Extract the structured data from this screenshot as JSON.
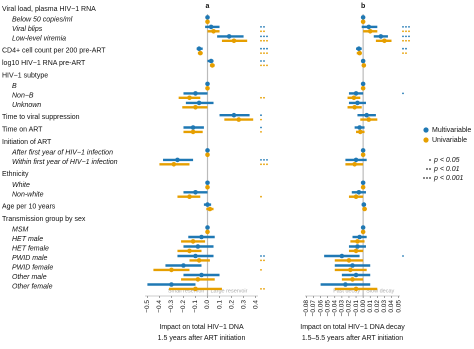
{
  "chart_data": {
    "type": "forest",
    "legend": [
      {
        "name": "Multivariable",
        "color": "#1f78b4"
      },
      {
        "name": "Univariable",
        "color": "#e69f00"
      }
    ],
    "significance": [
      {
        "stars": 1,
        "label": "p < 0.05"
      },
      {
        "stars": 2,
        "label": "p < 0.01"
      },
      {
        "stars": 3,
        "label": "p < 0.001"
      }
    ],
    "rows": [
      {
        "label": "Viral load, plasma HIV−1 RNA",
        "italic": false
      },
      {
        "label": "Below 50 copies/ml",
        "italic": true
      },
      {
        "label": "Viral blips",
        "italic": true
      },
      {
        "label": "Low-level viremia",
        "italic": true
      },
      {
        "label": "CD4+ cell count per 200 pre-ART",
        "italic": false
      },
      {
        "label": "log10 HIV−1 RNA pre-ART",
        "italic": false
      },
      {
        "label": "HIV−1 subtype",
        "italic": false
      },
      {
        "label": "B",
        "italic": true
      },
      {
        "label": "Non−B",
        "italic": true
      },
      {
        "label": "Unknown",
        "italic": true
      },
      {
        "label": "Time to viral suppression",
        "italic": false
      },
      {
        "label": "Time on ART",
        "italic": false
      },
      {
        "label": "Initiation of ART",
        "italic": false
      },
      {
        "label": "After first year of HIV−1 infection",
        "italic": true
      },
      {
        "label": "Within first year of HIV−1 infection",
        "italic": true
      },
      {
        "label": "Ethnicity",
        "italic": false
      },
      {
        "label": "White",
        "italic": true
      },
      {
        "label": "Non-white",
        "italic": true
      },
      {
        "label": "Age per 10 years",
        "italic": false
      },
      {
        "label": "Transmission group by sex",
        "italic": false
      },
      {
        "label": "MSM",
        "italic": true
      },
      {
        "label": "HET male",
        "italic": true
      },
      {
        "label": "HET female",
        "italic": true
      },
      {
        "label": "PWID male",
        "italic": true
      },
      {
        "label": "PWID female",
        "italic": true
      },
      {
        "label": "Other male",
        "italic": true
      },
      {
        "label": "Other female",
        "italic": true
      }
    ],
    "panels": [
      {
        "letter": "a",
        "xlabel": [
          "Impact on total HIV−1 DNA",
          "1.5 years after ART initiation"
        ],
        "note_left": "Small reservoir",
        "note_right": "Large reservoir",
        "xlim": [
          -0.52,
          0.42
        ],
        "xticks": [
          {
            "value": -0.5,
            "label": "−0.5"
          },
          {
            "value": -0.4,
            "label": "−0.4"
          },
          {
            "value": -0.3,
            "label": "−0.3"
          },
          {
            "value": -0.2,
            "label": "−0.2"
          },
          {
            "value": -0.1,
            "label": "−0.1"
          },
          {
            "value": 0,
            "label": "0.0"
          },
          0.1,
          0.2,
          0.3,
          0.4
        ],
        "series": [
          {
            "est": [
              null,
              0,
              0.03,
              0.18,
              -0.07,
              0.03,
              null,
              0,
              -0.1,
              -0.07,
              0.22,
              -0.12,
              null,
              0,
              -0.25,
              null,
              0,
              -0.1,
              0,
              null,
              0,
              -0.05,
              -0.08,
              -0.1,
              -0.2,
              -0.05,
              -0.3
            ],
            "lo": [
              null,
              null,
              -0.02,
              0.08,
              -0.09,
              0.0,
              null,
              null,
              -0.2,
              -0.18,
              0.1,
              -0.2,
              null,
              null,
              -0.37,
              null,
              null,
              -0.2,
              -0.03,
              null,
              null,
              -0.16,
              -0.2,
              -0.25,
              -0.35,
              -0.2,
              -0.5
            ],
            "hi": [
              null,
              null,
              0.1,
              0.3,
              -0.04,
              0.05,
              null,
              null,
              0,
              0.05,
              0.35,
              -0.03,
              null,
              null,
              -0.12,
              null,
              null,
              0,
              0.03,
              null,
              null,
              0.06,
              0.05,
              0.05,
              -0.05,
              0.1,
              -0.1
            ],
            "stars": [
              null,
              null,
              2,
              3,
              3,
              2,
              null,
              null,
              null,
              null,
              1,
              1,
              null,
              null,
              3,
              null,
              null,
              null,
              null,
              null,
              null,
              null,
              null,
              2,
              null,
              null,
              null
            ]
          },
          {
            "est": [
              null,
              0,
              0.05,
              0.22,
              -0.06,
              0.04,
              null,
              0,
              -0.15,
              -0.1,
              0.26,
              -0.12,
              null,
              0,
              -0.28,
              null,
              0,
              -0.15,
              0.02,
              null,
              0,
              -0.12,
              -0.15,
              -0.07,
              -0.3,
              -0.08,
              -0.1
            ],
            "lo": [
              null,
              null,
              0,
              0.12,
              -0.08,
              0.02,
              null,
              null,
              -0.24,
              -0.21,
              0.14,
              -0.2,
              null,
              null,
              -0.4,
              null,
              null,
              -0.25,
              -0.01,
              null,
              null,
              -0.22,
              -0.25,
              -0.15,
              -0.45,
              -0.22,
              -0.32
            ],
            "hi": [
              null,
              null,
              0.1,
              0.33,
              -0.04,
              0.06,
              null,
              null,
              -0.06,
              0,
              0.38,
              -0.04,
              null,
              null,
              -0.15,
              null,
              null,
              -0.06,
              0.05,
              null,
              null,
              -0.02,
              -0.05,
              0.02,
              -0.15,
              0.06,
              0.12
            ],
            "stars": [
              null,
              null,
              2,
              3,
              3,
              3,
              null,
              null,
              2,
              null,
              1,
              1,
              null,
              null,
              3,
              null,
              null,
              1,
              null,
              null,
              null,
              null,
              null,
              2,
              1,
              null,
              2
            ]
          }
        ]
      },
      {
        "letter": "b",
        "xlabel": [
          "Impact on total HIV−1 DNA decay",
          "1.5–5.5 years after ART initiation"
        ],
        "note_left": "Fast decay",
        "note_right": "Slow decay",
        "xlim": [
          -0.082,
          0.052
        ],
        "xticks": [
          {
            "value": -0.08,
            "label": "−0.08"
          },
          {
            "value": -0.07,
            "label": "−0.07"
          },
          {
            "value": -0.06,
            "label": "−0.06"
          },
          {
            "value": -0.05,
            "label": "−0.05"
          },
          {
            "value": -0.04,
            "label": "−0.04"
          },
          {
            "value": -0.03,
            "label": "−0.03"
          },
          {
            "value": -0.02,
            "label": "−0.02"
          },
          {
            "value": -0.01,
            "label": "−0.01"
          },
          {
            "value": 0,
            "label": "0.00"
          },
          0.01,
          0.02,
          0.03,
          0.04,
          0.05
        ],
        "series": [
          {
            "est": [
              null,
              0,
              0.008,
              0.025,
              -0.006,
              0,
              null,
              0,
              -0.01,
              -0.008,
              0.005,
              -0.005,
              null,
              0,
              -0.01,
              null,
              0,
              -0.006,
              0.001,
              null,
              0,
              -0.005,
              -0.008,
              -0.03,
              -0.015,
              -0.01,
              -0.025
            ],
            "lo": [
              null,
              null,
              -0.002,
              0.015,
              -0.01,
              -0.002,
              null,
              null,
              -0.02,
              -0.02,
              -0.008,
              -0.012,
              null,
              null,
              -0.025,
              null,
              null,
              -0.016,
              -0.002,
              null,
              null,
              -0.015,
              -0.02,
              -0.055,
              -0.04,
              -0.03,
              -0.06
            ],
            "hi": [
              null,
              null,
              0.02,
              0.035,
              -0.002,
              0.002,
              null,
              null,
              0,
              0.004,
              0.018,
              0.002,
              null,
              null,
              0.005,
              null,
              null,
              0.004,
              0.004,
              null,
              null,
              0.005,
              0.004,
              -0.005,
              0.01,
              0.01,
              0.01
            ],
            "stars": [
              null,
              null,
              3,
              3,
              2,
              null,
              null,
              null,
              1,
              null,
              null,
              null,
              null,
              null,
              null,
              null,
              null,
              null,
              null,
              null,
              null,
              null,
              null,
              1,
              null,
              null,
              null
            ]
          },
          {
            "est": [
              null,
              0,
              0.01,
              0.03,
              -0.005,
              0.001,
              null,
              0,
              -0.013,
              -0.012,
              0.008,
              -0.004,
              null,
              0,
              -0.012,
              null,
              0,
              -0.01,
              0.002,
              null,
              0,
              -0.008,
              -0.01,
              -0.02,
              -0.018,
              -0.015,
              -0.01
            ],
            "lo": [
              null,
              null,
              0,
              0.018,
              -0.009,
              -0.001,
              null,
              null,
              -0.022,
              -0.022,
              -0.004,
              -0.01,
              null,
              null,
              -0.025,
              null,
              null,
              -0.02,
              -0.001,
              null,
              null,
              -0.018,
              -0.02,
              -0.04,
              -0.04,
              -0.03,
              -0.04
            ],
            "hi": [
              null,
              null,
              0.02,
              0.04,
              -0.002,
              0.003,
              null,
              null,
              -0.004,
              -0.002,
              0.02,
              0.002,
              null,
              null,
              0,
              null,
              null,
              0,
              0.005,
              null,
              null,
              0.002,
              0,
              0,
              0.005,
              0,
              0.02
            ],
            "stars": [
              null,
              null,
              3,
              3,
              2,
              null,
              null,
              null,
              null,
              null,
              null,
              null,
              null,
              null,
              null,
              null,
              null,
              null,
              null,
              null,
              null,
              null,
              null,
              null,
              null,
              null,
              null
            ]
          }
        ]
      }
    ]
  }
}
